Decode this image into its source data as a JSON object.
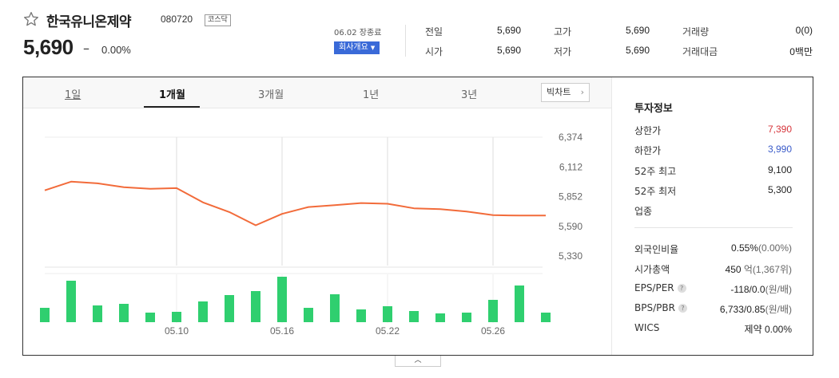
{
  "header": {
    "stock_name": "한국유니온제약",
    "stock_code": "080720",
    "market_badge": "코스닥",
    "price": "5,690",
    "change_sign": "–",
    "change_rate": "0.00%",
    "date_info": "06.02 장종료",
    "company_button": "회사개요",
    "quotes": [
      {
        "label": "전일",
        "value": "5,690"
      },
      {
        "label": "고가",
        "value": "5,690"
      },
      {
        "label": "거래량",
        "value": "0(0)"
      },
      {
        "label": "시가",
        "value": "5,690"
      },
      {
        "label": "저가",
        "value": "5,690"
      },
      {
        "label": "거래대금",
        "value": "0백만"
      }
    ]
  },
  "tabs": [
    {
      "label": "1일"
    },
    {
      "label": "1개월"
    },
    {
      "label": "3개월"
    },
    {
      "label": "1년"
    },
    {
      "label": "3년"
    }
  ],
  "active_tab": "1개월",
  "big_chart_button": "빅차트",
  "chart_data": {
    "type": "line",
    "price_series": [
      5907,
      5983,
      5968,
      5935,
      5921,
      5926,
      5801,
      5716,
      5600,
      5700,
      5760,
      5776,
      5795,
      5789,
      5749,
      5742,
      5720,
      5689,
      5685,
      5685
    ],
    "volume_series": [
      18,
      52,
      21,
      23,
      12,
      13,
      26,
      34,
      39,
      57,
      18,
      35,
      16,
      20,
      14,
      11,
      12,
      28,
      46,
      12
    ],
    "y_ticks": [
      "6,374",
      "6,112",
      "5,852",
      "5,590",
      "5,330"
    ],
    "x_ticks": [
      {
        "label": "05.10",
        "index": 5
      },
      {
        "label": "05.16",
        "index": 9
      },
      {
        "label": "05.22",
        "index": 13
      },
      {
        "label": "05.26",
        "index": 17
      }
    ],
    "ylim": [
      5330,
      6374
    ],
    "line_color": "#f26b3a",
    "volume_color": "#2fcf6f",
    "grid": true
  },
  "investment_info": {
    "title": "투자정보",
    "upper_limit": {
      "label": "상한가",
      "value": "7,390"
    },
    "lower_limit": {
      "label": "하한가",
      "value": "3,990"
    },
    "high_52w": {
      "label": "52주 최고",
      "value": "9,100"
    },
    "low_52w": {
      "label": "52주 최저",
      "value": "5,300"
    },
    "industry": {
      "label": "업종",
      "value": ""
    },
    "foreign_ratio": {
      "label": "외국인비율",
      "value": "0.55%",
      "sub": "(0.00%)"
    },
    "market_cap": {
      "label": "시가총액",
      "value": "450",
      "sub": "억(1,367위)"
    },
    "eps_per": {
      "label": "EPS/PER",
      "value": "-118/0.0",
      "sub": "(원/배)"
    },
    "bps_pbr": {
      "label": "BPS/PBR",
      "value": "6,733/0.85",
      "sub": "(원/배)"
    },
    "wics": {
      "label": "WICS",
      "value": "제약 0.00%"
    }
  },
  "colors": {
    "upper": "#d6343a",
    "lower": "#3a5bc9",
    "company_button": "#3a6ad8"
  }
}
